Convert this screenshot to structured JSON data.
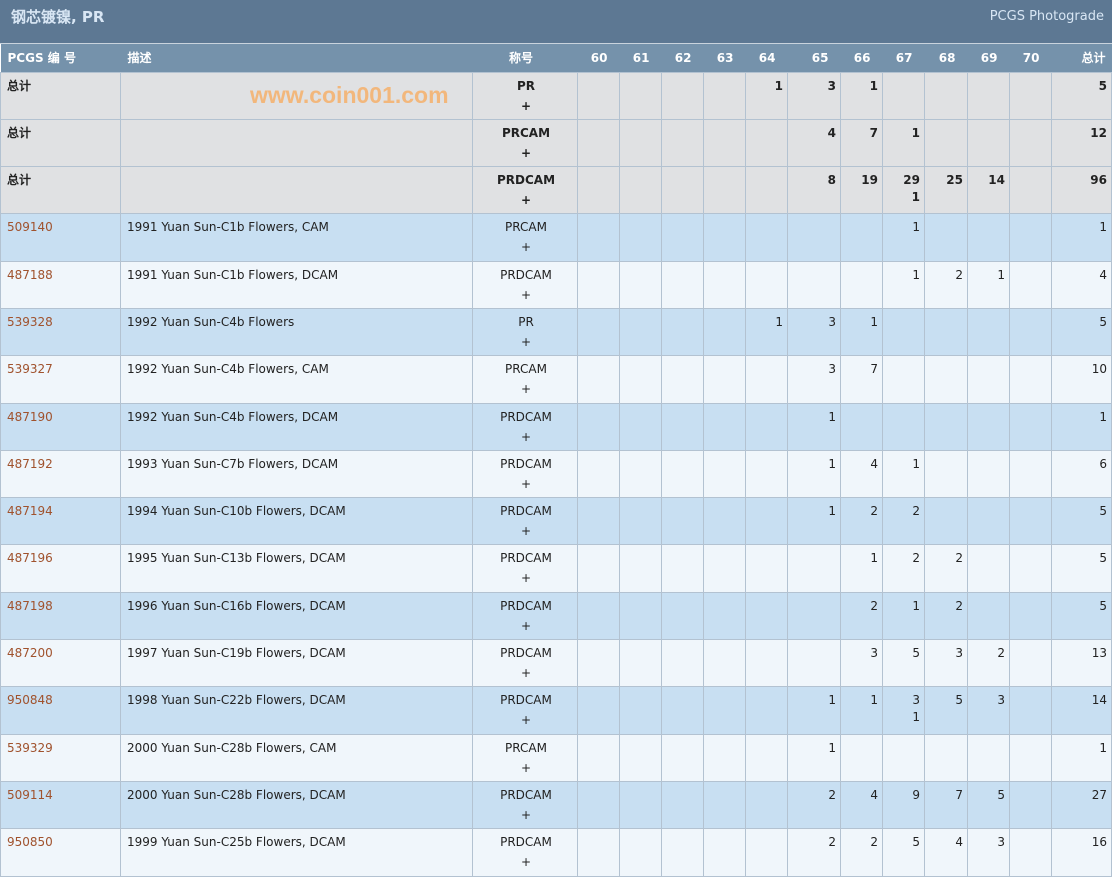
{
  "header": {
    "title": "钢芯镀镍, PR",
    "right": "PCGS Photograde"
  },
  "columns": {
    "id": "PCGS 编 号",
    "desc": "描述",
    "designation": "称号",
    "grades": [
      "60",
      "61",
      "62",
      "63",
      "64",
      "65",
      "66",
      "67",
      "68",
      "69",
      "70"
    ],
    "total": "总计"
  },
  "totals": [
    {
      "label": "总计",
      "designation": "PR\n+",
      "grades": [
        "",
        "",
        "",
        "",
        "1",
        "3",
        "1",
        "",
        "",
        "",
        ""
      ],
      "total": "5"
    },
    {
      "label": "总计",
      "designation": "PRCAM\n+",
      "grades": [
        "",
        "",
        "",
        "",
        "",
        "4",
        "7",
        "1",
        "",
        "",
        ""
      ],
      "total": "12"
    },
    {
      "label": "总计",
      "designation": "PRDCAM\n+",
      "grades": [
        "",
        "",
        "",
        "",
        "",
        "8",
        "19",
        "29\n1",
        "25",
        "14",
        ""
      ],
      "total": "96"
    }
  ],
  "rows": [
    {
      "id": "509140",
      "desc": "1991 Yuan Sun-C1b Flowers, CAM",
      "designation": "PRCAM\n+",
      "grades": [
        "",
        "",
        "",
        "",
        "",
        "",
        "",
        "1",
        "",
        "",
        ""
      ],
      "total": "1"
    },
    {
      "id": "487188",
      "desc": "1991 Yuan Sun-C1b Flowers, DCAM",
      "designation": "PRDCAM\n+",
      "grades": [
        "",
        "",
        "",
        "",
        "",
        "",
        "",
        "1",
        "2",
        "1",
        ""
      ],
      "total": "4"
    },
    {
      "id": "539328",
      "desc": "1992 Yuan Sun-C4b Flowers",
      "designation": "PR\n+",
      "grades": [
        "",
        "",
        "",
        "",
        "1",
        "3",
        "1",
        "",
        "",
        "",
        ""
      ],
      "total": "5"
    },
    {
      "id": "539327",
      "desc": "1992 Yuan Sun-C4b Flowers, CAM",
      "designation": "PRCAM\n+",
      "grades": [
        "",
        "",
        "",
        "",
        "",
        "3",
        "7",
        "",
        "",
        "",
        ""
      ],
      "total": "10"
    },
    {
      "id": "487190",
      "desc": "1992 Yuan Sun-C4b Flowers, DCAM",
      "designation": "PRDCAM\n+",
      "grades": [
        "",
        "",
        "",
        "",
        "",
        "1",
        "",
        "",
        "",
        "",
        ""
      ],
      "total": "1"
    },
    {
      "id": "487192",
      "desc": "1993 Yuan Sun-C7b Flowers, DCAM",
      "designation": "PRDCAM\n+",
      "grades": [
        "",
        "",
        "",
        "",
        "",
        "1",
        "4",
        "1",
        "",
        "",
        ""
      ],
      "total": "6"
    },
    {
      "id": "487194",
      "desc": "1994 Yuan Sun-C10b Flowers, DCAM",
      "designation": "PRDCAM\n+",
      "grades": [
        "",
        "",
        "",
        "",
        "",
        "1",
        "2",
        "2",
        "",
        "",
        ""
      ],
      "total": "5"
    },
    {
      "id": "487196",
      "desc": "1995 Yuan Sun-C13b Flowers, DCAM",
      "designation": "PRDCAM\n+",
      "grades": [
        "",
        "",
        "",
        "",
        "",
        "",
        "1",
        "2",
        "2",
        "",
        ""
      ],
      "total": "5"
    },
    {
      "id": "487198",
      "desc": "1996 Yuan Sun-C16b Flowers, DCAM",
      "designation": "PRDCAM\n+",
      "grades": [
        "",
        "",
        "",
        "",
        "",
        "",
        "2",
        "1",
        "2",
        "",
        ""
      ],
      "total": "5"
    },
    {
      "id": "487200",
      "desc": "1997 Yuan Sun-C19b Flowers, DCAM",
      "designation": "PRDCAM\n+",
      "grades": [
        "",
        "",
        "",
        "",
        "",
        "",
        "3",
        "5",
        "3",
        "2",
        ""
      ],
      "total": "13"
    },
    {
      "id": "950848",
      "desc": "1998 Yuan Sun-C22b Flowers, DCAM",
      "designation": "PRDCAM\n+",
      "grades": [
        "",
        "",
        "",
        "",
        "",
        "1",
        "1",
        "3\n1",
        "5",
        "3",
        ""
      ],
      "total": "14"
    },
    {
      "id": "539329",
      "desc": "2000 Yuan Sun-C28b Flowers, CAM",
      "designation": "PRCAM\n+",
      "grades": [
        "",
        "",
        "",
        "",
        "",
        "1",
        "",
        "",
        "",
        "",
        ""
      ],
      "total": "1"
    },
    {
      "id": "509114",
      "desc": "2000 Yuan Sun-C28b Flowers, DCAM",
      "designation": "PRDCAM\n+",
      "grades": [
        "",
        "",
        "",
        "",
        "",
        "2",
        "4",
        "9",
        "7",
        "5",
        ""
      ],
      "total": "27"
    },
    {
      "id": "950850",
      "desc": "1999 Yuan Sun-C25b Flowers, DCAM",
      "designation": "PRDCAM\n+",
      "grades": [
        "",
        "",
        "",
        "",
        "",
        "2",
        "2",
        "5",
        "4",
        "3",
        ""
      ],
      "total": "16"
    }
  ],
  "watermark": "www.coin001.com",
  "colors": {
    "header": "#5d7893",
    "column_header": "#7592ab",
    "total_row": "#e0e1e3",
    "row_alt": "#c8dff2",
    "row": "#f0f6fb",
    "link": "#a0522d"
  }
}
